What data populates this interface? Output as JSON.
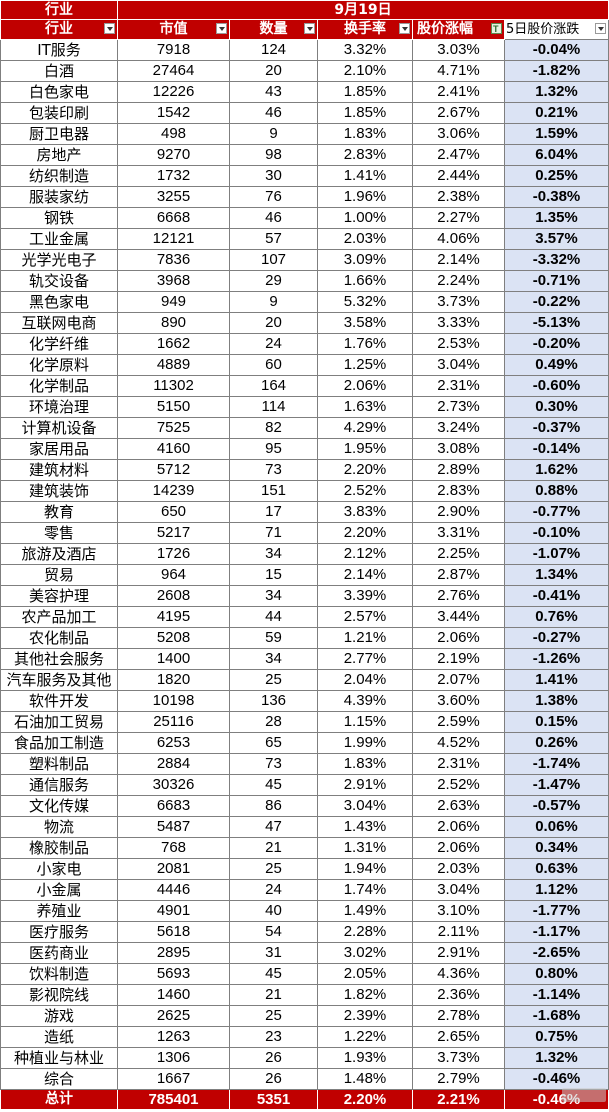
{
  "header": {
    "title_label": "行业",
    "date": "9月19日",
    "col_industry": "行业",
    "col_market_cap": "市值",
    "col_count": "数量",
    "col_turnover": "换手率",
    "col_price_change": "股价涨幅",
    "col_5day_change": "5日股价涨跌"
  },
  "rows": [
    {
      "industry": "IT服务",
      "market_cap": "7918",
      "count": "124",
      "turnover": "3.32%",
      "price_change": "3.03%",
      "change_5d": "-0.04%"
    },
    {
      "industry": "白酒",
      "market_cap": "27464",
      "count": "20",
      "turnover": "2.10%",
      "price_change": "4.71%",
      "change_5d": "-1.82%"
    },
    {
      "industry": "白色家电",
      "market_cap": "12226",
      "count": "43",
      "turnover": "1.85%",
      "price_change": "2.41%",
      "change_5d": "1.32%"
    },
    {
      "industry": "包装印刷",
      "market_cap": "1542",
      "count": "46",
      "turnover": "1.85%",
      "price_change": "2.67%",
      "change_5d": "0.21%"
    },
    {
      "industry": "厨卫电器",
      "market_cap": "498",
      "count": "9",
      "turnover": "1.83%",
      "price_change": "3.06%",
      "change_5d": "1.59%"
    },
    {
      "industry": "房地产",
      "market_cap": "9270",
      "count": "98",
      "turnover": "2.83%",
      "price_change": "2.47%",
      "change_5d": "6.04%"
    },
    {
      "industry": "纺织制造",
      "market_cap": "1732",
      "count": "30",
      "turnover": "1.41%",
      "price_change": "2.44%",
      "change_5d": "0.25%"
    },
    {
      "industry": "服装家纺",
      "market_cap": "3255",
      "count": "76",
      "turnover": "1.96%",
      "price_change": "2.38%",
      "change_5d": "-0.38%"
    },
    {
      "industry": "钢铁",
      "market_cap": "6668",
      "count": "46",
      "turnover": "1.00%",
      "price_change": "2.27%",
      "change_5d": "1.35%"
    },
    {
      "industry": "工业金属",
      "market_cap": "12121",
      "count": "57",
      "turnover": "2.03%",
      "price_change": "4.06%",
      "change_5d": "3.57%"
    },
    {
      "industry": "光学光电子",
      "market_cap": "7836",
      "count": "107",
      "turnover": "3.09%",
      "price_change": "2.14%",
      "change_5d": "-3.32%"
    },
    {
      "industry": "轨交设备",
      "market_cap": "3968",
      "count": "29",
      "turnover": "1.66%",
      "price_change": "2.24%",
      "change_5d": "-0.71%"
    },
    {
      "industry": "黑色家电",
      "market_cap": "949",
      "count": "9",
      "turnover": "5.32%",
      "price_change": "3.73%",
      "change_5d": "-0.22%"
    },
    {
      "industry": "互联网电商",
      "market_cap": "890",
      "count": "20",
      "turnover": "3.58%",
      "price_change": "3.33%",
      "change_5d": "-5.13%"
    },
    {
      "industry": "化学纤维",
      "market_cap": "1662",
      "count": "24",
      "turnover": "1.76%",
      "price_change": "2.53%",
      "change_5d": "-0.20%"
    },
    {
      "industry": "化学原料",
      "market_cap": "4889",
      "count": "60",
      "turnover": "1.25%",
      "price_change": "3.04%",
      "change_5d": "0.49%"
    },
    {
      "industry": "化学制品",
      "market_cap": "11302",
      "count": "164",
      "turnover": "2.06%",
      "price_change": "2.31%",
      "change_5d": "-0.60%"
    },
    {
      "industry": "环境治理",
      "market_cap": "5150",
      "count": "114",
      "turnover": "1.63%",
      "price_change": "2.73%",
      "change_5d": "0.30%"
    },
    {
      "industry": "计算机设备",
      "market_cap": "7525",
      "count": "82",
      "turnover": "4.29%",
      "price_change": "3.24%",
      "change_5d": "-0.37%"
    },
    {
      "industry": "家居用品",
      "market_cap": "4160",
      "count": "95",
      "turnover": "1.95%",
      "price_change": "3.08%",
      "change_5d": "-0.14%"
    },
    {
      "industry": "建筑材料",
      "market_cap": "5712",
      "count": "73",
      "turnover": "2.20%",
      "price_change": "2.89%",
      "change_5d": "1.62%"
    },
    {
      "industry": "建筑装饰",
      "market_cap": "14239",
      "count": "151",
      "turnover": "2.52%",
      "price_change": "2.83%",
      "change_5d": "0.88%"
    },
    {
      "industry": "教育",
      "market_cap": "650",
      "count": "17",
      "turnover": "3.83%",
      "price_change": "2.90%",
      "change_5d": "-0.77%"
    },
    {
      "industry": "零售",
      "market_cap": "5217",
      "count": "71",
      "turnover": "2.20%",
      "price_change": "3.31%",
      "change_5d": "-0.10%"
    },
    {
      "industry": "旅游及酒店",
      "market_cap": "1726",
      "count": "34",
      "turnover": "2.12%",
      "price_change": "2.25%",
      "change_5d": "-1.07%"
    },
    {
      "industry": "贸易",
      "market_cap": "964",
      "count": "15",
      "turnover": "2.14%",
      "price_change": "2.87%",
      "change_5d": "1.34%"
    },
    {
      "industry": "美容护理",
      "market_cap": "2608",
      "count": "34",
      "turnover": "3.39%",
      "price_change": "2.76%",
      "change_5d": "-0.41%"
    },
    {
      "industry": "农产品加工",
      "market_cap": "4195",
      "count": "44",
      "turnover": "2.57%",
      "price_change": "3.44%",
      "change_5d": "0.76%"
    },
    {
      "industry": "农化制品",
      "market_cap": "5208",
      "count": "59",
      "turnover": "1.21%",
      "price_change": "2.06%",
      "change_5d": "-0.27%"
    },
    {
      "industry": "其他社会服务",
      "market_cap": "1400",
      "count": "34",
      "turnover": "2.77%",
      "price_change": "2.19%",
      "change_5d": "-1.26%"
    },
    {
      "industry": "汽车服务及其他",
      "market_cap": "1820",
      "count": "25",
      "turnover": "2.04%",
      "price_change": "2.07%",
      "change_5d": "1.41%"
    },
    {
      "industry": "软件开发",
      "market_cap": "10198",
      "count": "136",
      "turnover": "4.39%",
      "price_change": "3.60%",
      "change_5d": "1.38%"
    },
    {
      "industry": "石油加工贸易",
      "market_cap": "25116",
      "count": "28",
      "turnover": "1.15%",
      "price_change": "2.59%",
      "change_5d": "0.15%"
    },
    {
      "industry": "食品加工制造",
      "market_cap": "6253",
      "count": "65",
      "turnover": "1.99%",
      "price_change": "4.52%",
      "change_5d": "0.26%"
    },
    {
      "industry": "塑料制品",
      "market_cap": "2884",
      "count": "73",
      "turnover": "1.83%",
      "price_change": "2.31%",
      "change_5d": "-1.74%"
    },
    {
      "industry": "通信服务",
      "market_cap": "30326",
      "count": "45",
      "turnover": "2.91%",
      "price_change": "2.52%",
      "change_5d": "-1.47%"
    },
    {
      "industry": "文化传媒",
      "market_cap": "6683",
      "count": "86",
      "turnover": "3.04%",
      "price_change": "2.63%",
      "change_5d": "-0.57%"
    },
    {
      "industry": "物流",
      "market_cap": "5487",
      "count": "47",
      "turnover": "1.43%",
      "price_change": "2.06%",
      "change_5d": "0.06%"
    },
    {
      "industry": "橡胶制品",
      "market_cap": "768",
      "count": "21",
      "turnover": "1.31%",
      "price_change": "2.06%",
      "change_5d": "0.34%"
    },
    {
      "industry": "小家电",
      "market_cap": "2081",
      "count": "25",
      "turnover": "1.94%",
      "price_change": "2.03%",
      "change_5d": "0.63%"
    },
    {
      "industry": "小金属",
      "market_cap": "4446",
      "count": "24",
      "turnover": "1.74%",
      "price_change": "3.04%",
      "change_5d": "1.12%"
    },
    {
      "industry": "养殖业",
      "market_cap": "4901",
      "count": "40",
      "turnover": "1.49%",
      "price_change": "3.10%",
      "change_5d": "-1.77%"
    },
    {
      "industry": "医疗服务",
      "market_cap": "5618",
      "count": "54",
      "turnover": "2.28%",
      "price_change": "2.11%",
      "change_5d": "-1.17%"
    },
    {
      "industry": "医药商业",
      "market_cap": "2895",
      "count": "31",
      "turnover": "3.02%",
      "price_change": "2.91%",
      "change_5d": "-2.65%"
    },
    {
      "industry": "饮料制造",
      "market_cap": "5693",
      "count": "45",
      "turnover": "2.05%",
      "price_change": "4.36%",
      "change_5d": "0.80%"
    },
    {
      "industry": "影视院线",
      "market_cap": "1460",
      "count": "21",
      "turnover": "1.82%",
      "price_change": "2.36%",
      "change_5d": "-1.14%"
    },
    {
      "industry": "游戏",
      "market_cap": "2625",
      "count": "25",
      "turnover": "2.39%",
      "price_change": "2.78%",
      "change_5d": "-1.68%"
    },
    {
      "industry": "造纸",
      "market_cap": "1263",
      "count": "23",
      "turnover": "1.22%",
      "price_change": "2.65%",
      "change_5d": "0.75%"
    },
    {
      "industry": "种植业与林业",
      "market_cap": "1306",
      "count": "26",
      "turnover": "1.93%",
      "price_change": "3.73%",
      "change_5d": "1.32%"
    },
    {
      "industry": "综合",
      "market_cap": "1667",
      "count": "26",
      "turnover": "1.48%",
      "price_change": "2.79%",
      "change_5d": "-0.46%"
    }
  ],
  "total": {
    "label": "总计",
    "market_cap": "785401",
    "count": "5351",
    "turnover": "2.20%",
    "price_change": "2.21%",
    "change_5d": "-0.46%"
  },
  "icons": {
    "filter_dropdown": "dropdown-arrow-icon",
    "filter_active": "filter-active-icon"
  },
  "colors": {
    "header_bg": "#c00000",
    "change_col_bg": "#dbe3f4"
  }
}
